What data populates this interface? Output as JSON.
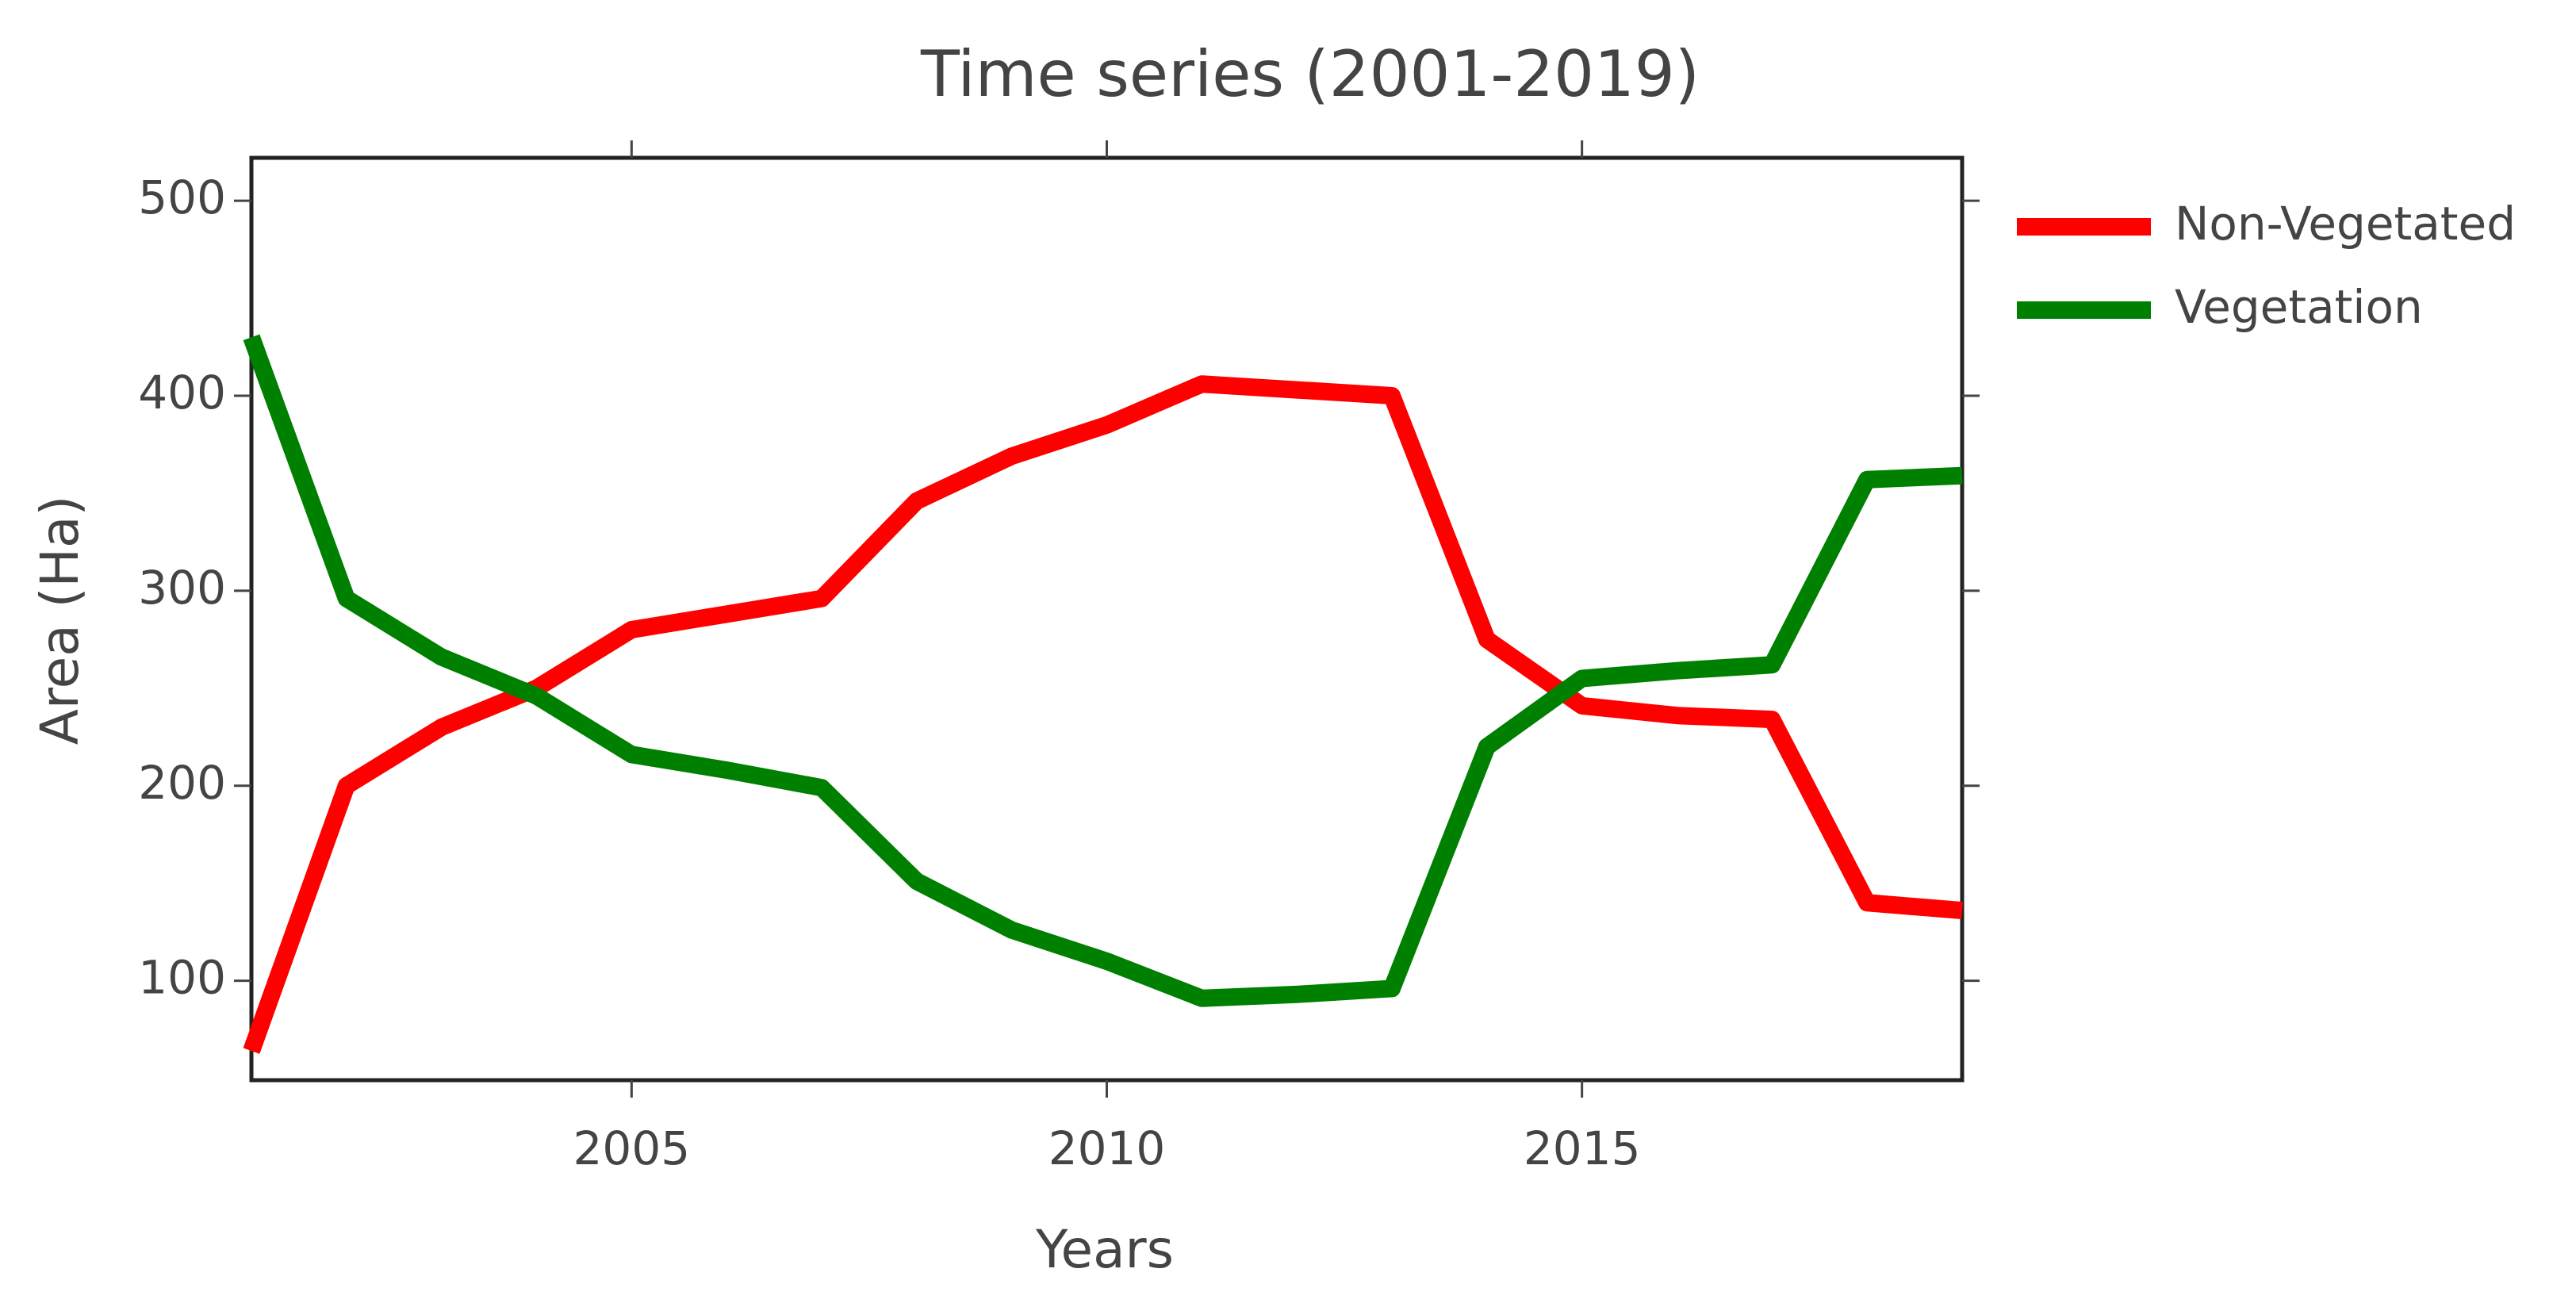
{
  "chart_data": {
    "type": "line",
    "title": "Time series (2001-2019)",
    "x_label": "Years",
    "y_label": "Area (Ha)",
    "x": [
      2001,
      2002,
      2003,
      2004,
      2005,
      2006,
      2007,
      2008,
      2009,
      2010,
      2011,
      2012,
      2013,
      2014,
      2015,
      2016,
      2017,
      2018,
      2019
    ],
    "series": [
      {
        "name": "Non-Vegetated",
        "color": "#ff0000",
        "values": [
          64,
          200,
          230,
          250,
          280,
          288,
          296,
          346,
          369,
          385,
          406,
          403,
          400,
          275,
          241,
          236,
          234,
          140,
          136
        ]
      },
      {
        "name": "Vegetation",
        "color": "#008000",
        "values": [
          430,
          296,
          266,
          246,
          216,
          208,
          199,
          151,
          126,
          110,
          91,
          93,
          96,
          220,
          255,
          259,
          262,
          357,
          359
        ]
      }
    ],
    "xlim": [
      2001,
      2019
    ],
    "xticks": [
      2005,
      2010,
      2015
    ],
    "ylim": [
      49,
      522
    ],
    "yticks": [
      100,
      200,
      300,
      400,
      500
    ]
  }
}
